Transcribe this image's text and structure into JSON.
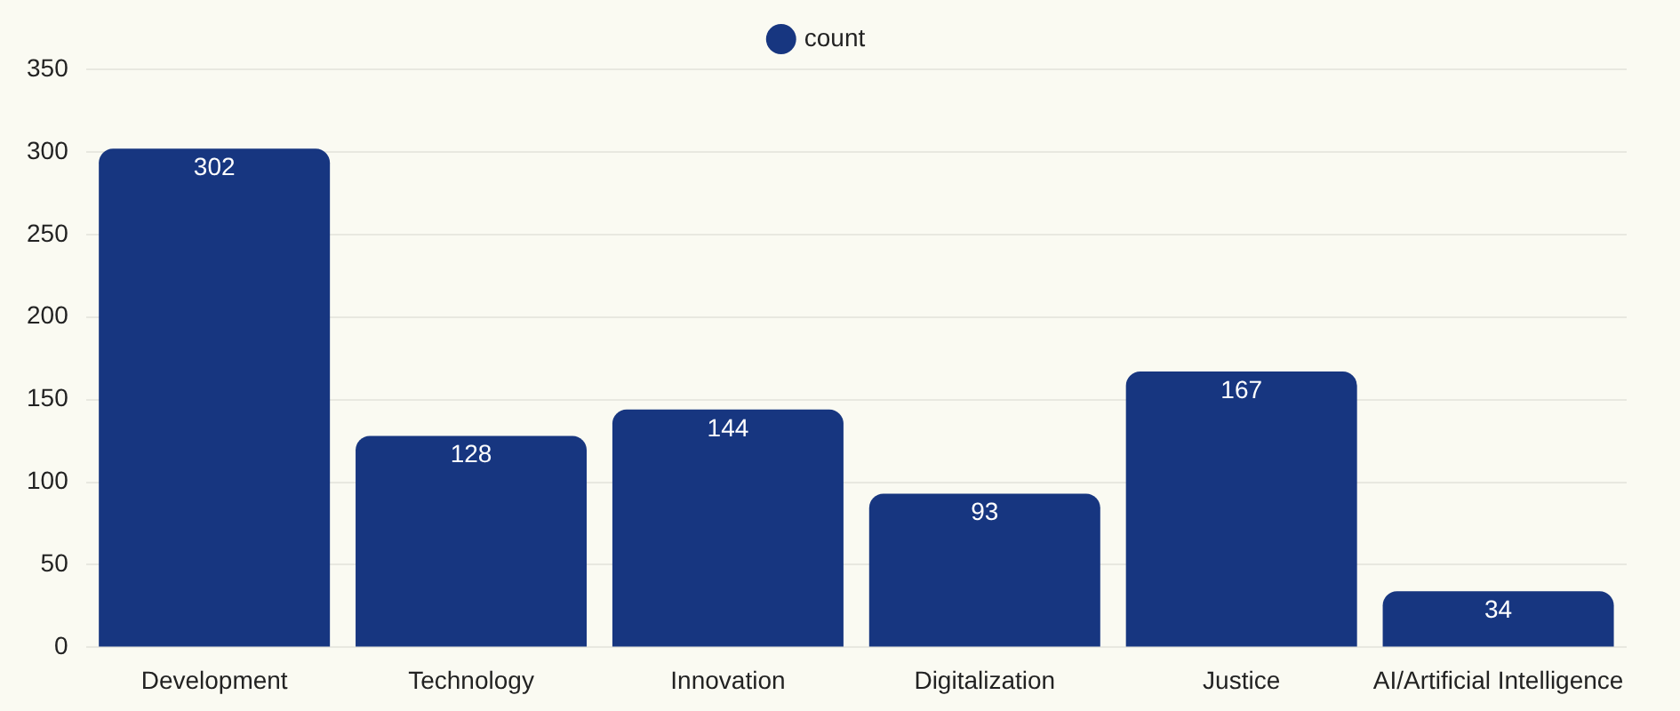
{
  "chart_data": {
    "type": "bar",
    "categories": [
      "Development",
      "Technology",
      "Innovation",
      "Digitalization",
      "Justice",
      "AI/Artificial Intelligence"
    ],
    "series": [
      {
        "name": "count",
        "color": "#173680",
        "values": [
          302,
          128,
          144,
          93,
          167,
          34
        ]
      }
    ],
    "ylim": [
      0,
      350
    ],
    "yticks": [
      0,
      50,
      100,
      150,
      200,
      250,
      300,
      350
    ],
    "grid": "y",
    "legend": "top",
    "data_labels": true
  }
}
